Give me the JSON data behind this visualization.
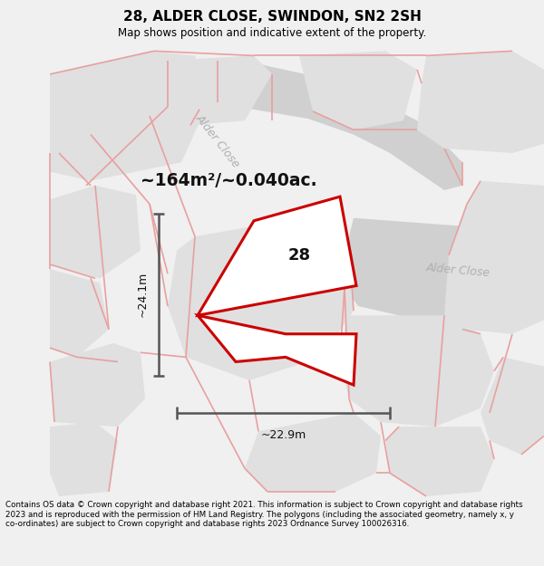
{
  "title": "28, ALDER CLOSE, SWINDON, SN2 2SH",
  "subtitle": "Map shows position and indicative extent of the property.",
  "area_text": "~164m²/~0.040ac.",
  "width_label": "~22.9m",
  "height_label": "~24.1m",
  "label_28": "28",
  "footer": "Contains OS data © Crown copyright and database right 2021. This information is subject to Crown copyright and database rights 2023 and is reproduced with the permission of HM Land Registry. The polygons (including the associated geometry, namely x, y co-ordinates) are subject to Crown copyright and database rights 2023 Ordnance Survey 100026316.",
  "bg_color": "#f0f0f0",
  "map_bg": "#ffffff",
  "road_gray": "#d0d0d0",
  "parcel_gray": "#e0e0e0",
  "road_label_color": "#b0b0b0",
  "plot_color": "#cc0000",
  "dim_color": "#555555",
  "title_color": "#000000",
  "footer_color": "#000000",
  "pink_line": "#e8a0a0"
}
